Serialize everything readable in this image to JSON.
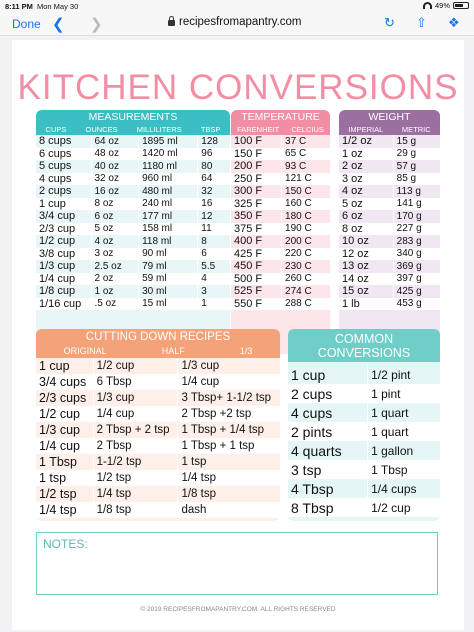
{
  "status": {
    "time": "8:11 PM",
    "date": "Mon May 30",
    "battery": "49%"
  },
  "browser": {
    "done": "Done",
    "url": "recipesfromapantry.com",
    "back_icon": "chevron-left-icon",
    "forward_icon": "chevron-right-icon"
  },
  "title": "KITCHEN CONVERSIONS",
  "measurements": {
    "title": "MEASUREMENTS",
    "headers": [
      "CUPS",
      "OUNCES",
      "MILLILITERS",
      "TBSP"
    ],
    "rows": [
      [
        "8 cups",
        "64 oz",
        "1895 ml",
        "128"
      ],
      [
        "6 cups",
        "48 oz",
        "1420 ml",
        "96"
      ],
      [
        "5 cups",
        "40 oz",
        "1180 ml",
        "80"
      ],
      [
        "4 cups",
        "32 oz",
        "960 ml",
        "64"
      ],
      [
        "2 cups",
        "16 oz",
        "480 ml",
        "32"
      ],
      [
        "1 cup",
        "8 oz",
        "240 ml",
        "16"
      ],
      [
        "3/4 cup",
        "6 oz",
        "177 ml",
        "12"
      ],
      [
        "2/3 cup",
        "5 oz",
        "158 ml",
        "11"
      ],
      [
        "1/2 cup",
        "4 oz",
        "118 ml",
        "8"
      ],
      [
        "3/8 cup",
        "3 oz",
        "90 ml",
        "6"
      ],
      [
        "1/3 cup",
        "2.5 oz",
        "79 ml",
        "5.5"
      ],
      [
        "1/4 cup",
        "2 oz",
        "59 ml",
        "4"
      ],
      [
        "1/8 cup",
        "1 oz",
        "30 ml",
        "3"
      ],
      [
        "1/16 cup",
        ".5 oz",
        "15 ml",
        "1"
      ]
    ]
  },
  "temperature": {
    "title": "TEMPERATURE",
    "headers": [
      "FARENHEIT",
      "CELCIUS"
    ],
    "rows": [
      [
        "100 F",
        "37 C"
      ],
      [
        "150 F",
        "65 C"
      ],
      [
        "200 F",
        "93 C"
      ],
      [
        "250 F",
        "121 C"
      ],
      [
        "300 F",
        "150 C"
      ],
      [
        "325 F",
        "160 C"
      ],
      [
        "350 F",
        "180 C"
      ],
      [
        "375 F",
        "190 C"
      ],
      [
        "400 F",
        "200 C"
      ],
      [
        "425 F",
        "220 C"
      ],
      [
        "450 F",
        "230 C"
      ],
      [
        "500 F",
        "260 C"
      ],
      [
        "525 F",
        "274 C"
      ],
      [
        "550 F",
        "288 C"
      ]
    ]
  },
  "weight": {
    "title": "WEIGHT",
    "headers": [
      "IMPERIAL",
      "METRIC"
    ],
    "rows": [
      [
        "1/2 oz",
        "15 g"
      ],
      [
        "1 oz",
        "29 g"
      ],
      [
        "2 oz",
        "57 g"
      ],
      [
        "3 oz",
        "85 g"
      ],
      [
        "4 oz",
        "113 g"
      ],
      [
        "5 oz",
        "141 g"
      ],
      [
        "6 oz",
        "170 g"
      ],
      [
        "8 oz",
        "227 g"
      ],
      [
        "10 oz",
        "283 g"
      ],
      [
        "12 oz",
        "340 g"
      ],
      [
        "13 oz",
        "369 g"
      ],
      [
        "14 oz",
        "397 g"
      ],
      [
        "15 oz",
        "425 g"
      ],
      [
        "1 lb",
        "453 g"
      ]
    ]
  },
  "cutting": {
    "title": "CUTTING DOWN RECIPES",
    "headers": [
      "ORIGINAL",
      "HALF",
      "1/3"
    ],
    "rows": [
      [
        "1 cup",
        "1/2 cup",
        "1/3 cup"
      ],
      [
        "3/4 cups",
        "6 Tbsp",
        "1/4 cup"
      ],
      [
        "2/3 cups",
        "1/3 cup",
        "3 Tbsp+ 1-1/2 tsp"
      ],
      [
        "1/2 cup",
        "1/4 cup",
        "2 Tbsp +2 tsp"
      ],
      [
        "1/3 cup",
        "2 Tbsp + 2 tsp",
        "1 Tbsp + 1/4 tsp"
      ],
      [
        "1/4 cup",
        "2 Tbsp",
        "1 Tbsp + 1 tsp"
      ],
      [
        "1 Tbsp",
        "1-1/2 tsp",
        "1 tsp"
      ],
      [
        "1 tsp",
        "1/2 tsp",
        "1/4 tsp"
      ],
      [
        "1/2 tsp",
        "1/4 tsp",
        "1/8 tsp"
      ],
      [
        "1/4 tsp",
        "1/8 tsp",
        "dash"
      ]
    ]
  },
  "common": {
    "title": "COMMON CONVERSIONS",
    "rows": [
      [
        "1 cup",
        "1/2 pint"
      ],
      [
        "2 cups",
        "1 pint"
      ],
      [
        "4 cups",
        "1 quart"
      ],
      [
        "2 pints",
        "1 quart"
      ],
      [
        "4 quarts",
        "1 gallon"
      ],
      [
        "3 tsp",
        "1 Tbsp"
      ],
      [
        "4 Tbsp",
        "1/4 cups"
      ],
      [
        "8 Tbsp",
        "1/2 cup"
      ]
    ]
  },
  "notes_label": "NOTES:",
  "footer": "© 2019 RECIPESFROMAPANTRY.COM. ALL RIGHTS RESERVED",
  "colors": {
    "pink": "#f28ea3",
    "teal": "#3bbfc4",
    "coral": "#f4a27a",
    "purple": "#9b6fa0",
    "mint": "#6fcfc8"
  }
}
